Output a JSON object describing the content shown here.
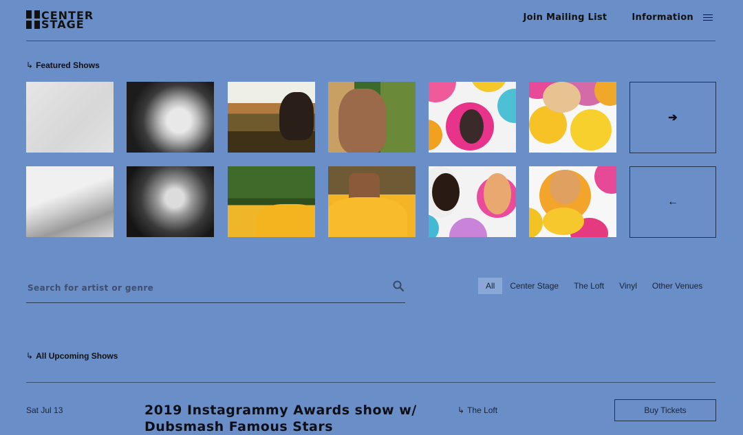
{
  "header": {
    "logo_line1": "CENTER",
    "logo_line2": "STAGE",
    "nav_mailing": "Join Mailing List",
    "nav_info": "Information"
  },
  "featured": {
    "label": "Featured Shows",
    "arrow_glyph": "↳",
    "next_glyph": "➔",
    "prev_glyph": "🡐"
  },
  "search": {
    "placeholder": "Search for artist or genre"
  },
  "filters": [
    "All",
    "Center Stage",
    "The Loft",
    "Vinyl",
    "Other Venues"
  ],
  "upcoming": {
    "label": "All Upcoming Shows"
  },
  "event": {
    "date": "Sat Jul 13",
    "title": "2019 Instagrammy Awards show w/ Dubsmash Famous Stars",
    "venue": "The Loft",
    "buy_label": "Buy Tickets"
  }
}
